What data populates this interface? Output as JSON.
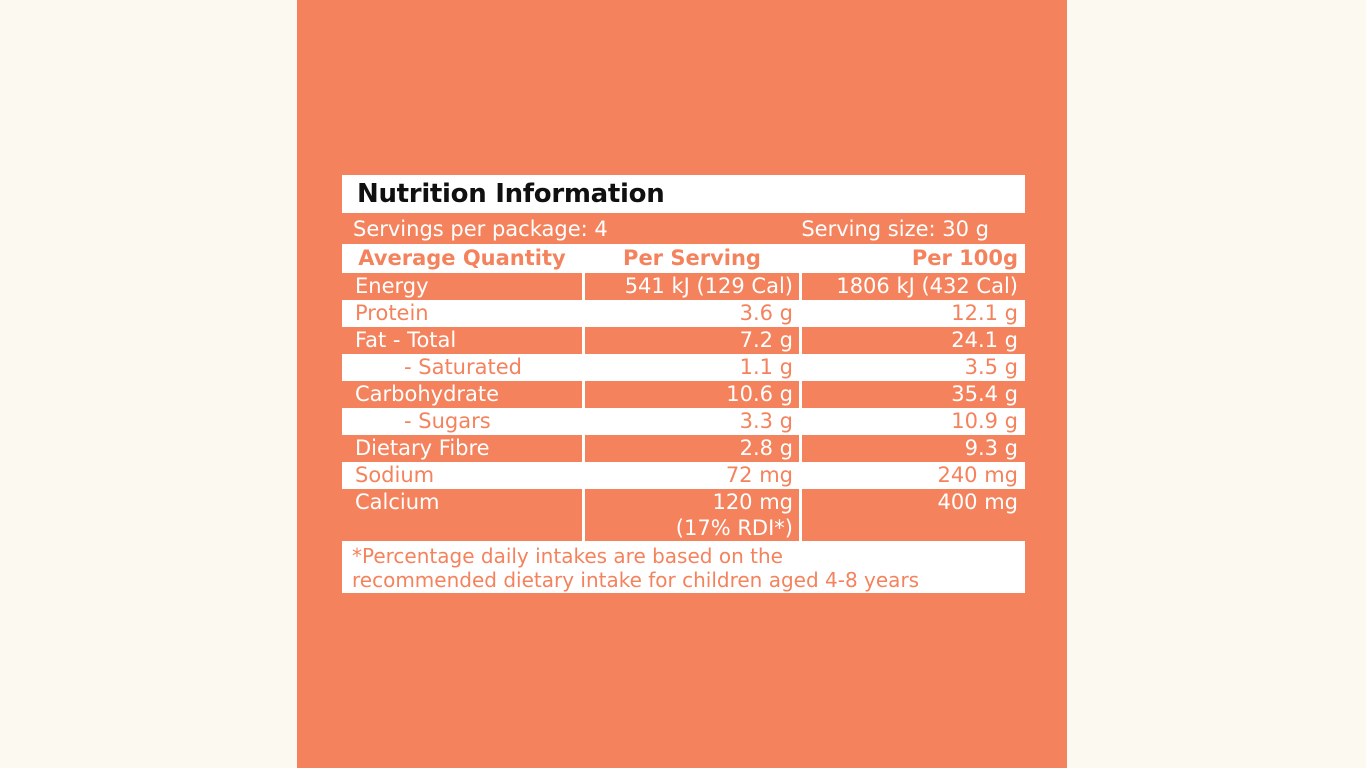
{
  "colors": {
    "coral": "#F4835D",
    "cream_background": "#FCF9F0",
    "card_background": "#FFFFFF",
    "title_text": "#101010",
    "band_text": "#FFFFFF"
  },
  "nutrition_label": {
    "title": "Nutrition Information",
    "servings_per_package": "Servings per package: 4",
    "serving_size": "Serving size: 30 g",
    "column_headers": {
      "average_quantity": "Average Quantity",
      "per_serving": "Per Serving",
      "per_100g": "Per 100g"
    },
    "rows": [
      {
        "nutrient": "Energy",
        "per_serving": "541 kJ (129 Cal)",
        "per_100g": "1806 kJ (432 Cal)"
      },
      {
        "nutrient": "Protein",
        "per_serving": "3.6 g",
        "per_100g": "12.1 g"
      },
      {
        "nutrient": "Fat - Total",
        "per_serving": "7.2 g",
        "per_100g": "24.1 g"
      },
      {
        "nutrient": "- Saturated",
        "per_serving": "1.1 g",
        "per_100g": "3.5 g"
      },
      {
        "nutrient": "Carbohydrate",
        "per_serving": "10.6 g",
        "per_100g": "35.4 g"
      },
      {
        "nutrient": "- Sugars",
        "per_serving": "3.3 g",
        "per_100g": "10.9 g"
      },
      {
        "nutrient": "Dietary Fibre",
        "per_serving": "2.8 g",
        "per_100g": "9.3 g"
      },
      {
        "nutrient": "Sodium",
        "per_serving": "72 mg",
        "per_100g": "240 mg"
      },
      {
        "nutrient": "Calcium",
        "per_serving": "120 mg",
        "per_serving_note": "(17% RDI*)",
        "per_100g": "400 mg"
      }
    ],
    "footnote_lines": [
      "*Percentage daily intakes are based on the",
      "recommended dietary intake for children aged 4-8 years"
    ]
  }
}
